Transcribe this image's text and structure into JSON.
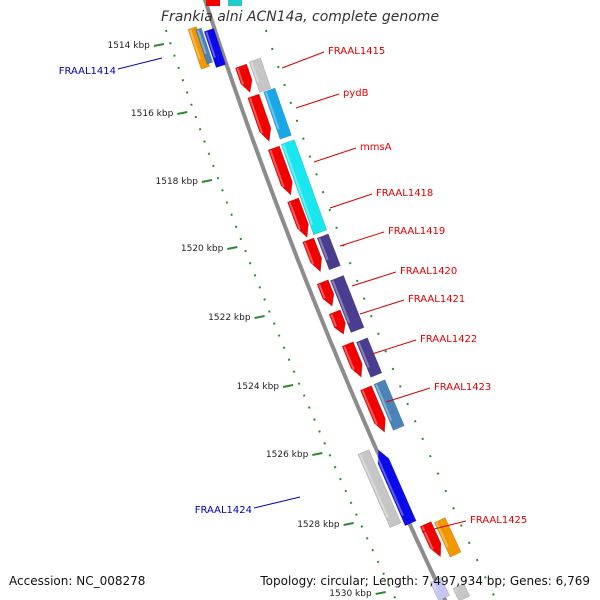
{
  "title": "Frankia alni ACN14a, complete genome",
  "footer": {
    "accession": "Accession: NC_008278",
    "stats": "Topology: circular; Length: 7,497,934 bp; Genes: 6,769"
  },
  "scale": {
    "unit": "kbp",
    "ticks": [
      "1514 kbp",
      "1516 kbp",
      "1518 kbp",
      "1520 kbp",
      "1522 kbp",
      "1524 kbp",
      "1526 kbp",
      "1528 kbp",
      "1530 kbp"
    ]
  },
  "colors": {
    "backbone": "#8c8c8c",
    "tick": "#2f8a2f",
    "label_right": "#dd0000",
    "label_left": "#0000bb",
    "gene_red": "#f20000",
    "gene_cyan": "#19e6ee",
    "gene_sky": "#1aa7e8",
    "gene_steel": "#4a83b8",
    "gene_purple": "#4a3d8f",
    "gene_blue": "#0b0bea",
    "gene_orange": "#f29700",
    "gene_gray": "#c6c6c6"
  },
  "labels": {
    "right": [
      "FRAAL1415",
      "pydB",
      "mmsA",
      "FRAAL1418",
      "FRAAL1419",
      "FRAAL1420",
      "FRAAL1421",
      "FRAAL1422",
      "FRAAL1423",
      "FRAAL1425"
    ],
    "left": [
      "FRAAL1414",
      "FRAAL1424"
    ]
  }
}
